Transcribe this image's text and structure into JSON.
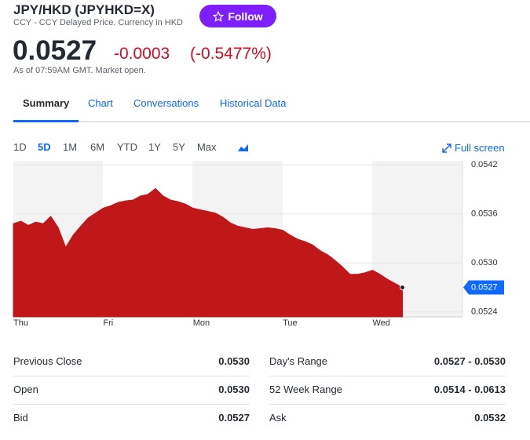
{
  "header": {
    "symbol": "JPY/HKD (JPYHKD=X)",
    "subtitle": "CCY - CCY Delayed Price. Currency in HKD",
    "follow": "Follow",
    "price": "0.0527",
    "change": "-0.0003",
    "change_pct": "(-0.5477%)",
    "as_of": "As of 07:59AM GMT. Market open."
  },
  "tabs": [
    "Summary",
    "Chart",
    "Conversations",
    "Historical Data"
  ],
  "ranges": [
    "1D",
    "5D",
    "1M",
    "6M",
    "YTD",
    "1Y",
    "5Y",
    "Max"
  ],
  "full_screen": "Full screen",
  "chart_data": {
    "type": "area",
    "color": "#c0171b",
    "grid": true,
    "categories": [
      "Thu",
      null,
      null,
      null,
      null,
      null,
      null,
      null,
      null,
      null,
      null,
      null,
      "Fri",
      null,
      null,
      null,
      null,
      null,
      null,
      null,
      null,
      null,
      null,
      null,
      "Mon",
      null,
      null,
      null,
      null,
      null,
      null,
      null,
      null,
      null,
      null,
      null,
      "Tue",
      null,
      null,
      null,
      null,
      null,
      null,
      null,
      null,
      null,
      null,
      null,
      "Wed",
      null,
      null,
      null,
      null
    ],
    "values": [
      0.05348,
      0.05351,
      0.05346,
      0.0535,
      0.05348,
      0.05357,
      0.05343,
      0.05319,
      0.05334,
      0.05345,
      0.05355,
      0.05361,
      0.05367,
      0.0537,
      0.05374,
      0.05376,
      0.05377,
      0.05382,
      0.05384,
      0.05391,
      0.05382,
      0.05377,
      0.05375,
      0.05372,
      0.05367,
      0.05365,
      0.05363,
      0.05361,
      0.05356,
      0.05349,
      0.05345,
      0.05343,
      0.05341,
      0.05342,
      0.05343,
      0.05342,
      0.0534,
      0.05334,
      0.05329,
      0.05326,
      0.05322,
      0.05315,
      0.0531,
      0.05303,
      0.05295,
      0.05286,
      0.05286,
      0.05288,
      0.05291,
      0.05286,
      0.0528,
      0.05275,
      0.0527
    ],
    "ylim": [
      0.05234,
      0.05425
    ],
    "yticks": [
      0.0542,
      0.0536,
      {
        "value": 0.053,
        "label": "0.0530"
      },
      0.0524
    ]
  },
  "stats": {
    "rows": [
      [
        "Previous Close",
        "0.0530",
        "Day's Range",
        "0.0527 - 0.0530"
      ],
      [
        "Open",
        "0.0530",
        "52 Week Range",
        "0.0514 - 0.0613"
      ],
      [
        "Bid",
        "0.0527",
        "Ask",
        "0.0532"
      ]
    ]
  }
}
